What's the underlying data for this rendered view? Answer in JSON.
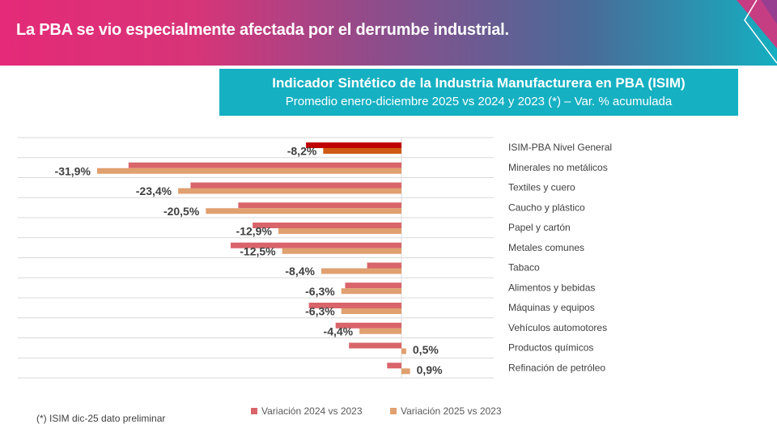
{
  "header": {
    "title": "La PBA se vio especialmente afectada por el derrumbe industrial."
  },
  "chart_title": {
    "main": "Indicador  Sintético de la Industria  Manufacturera  en PBA (ISIM)",
    "sub": "Promedio enero-diciembre 2025 vs 2024 y 2023 (*) – Var. % acumulada"
  },
  "footnote": "(*) ISIM dic-25 dato preliminar",
  "chart_data": {
    "type": "bar",
    "orientation": "horizontal",
    "categories": [
      "ISIM-PBA Nivel General",
      "Minerales no metálicos",
      "Textiles y cuero",
      "Caucho y plástico",
      "Papel y cartón",
      "Metales comunes",
      "Tabaco",
      "Alimentos y bebidas",
      "Máquinas y equipos",
      "Vehículos automotores",
      "Productos químicos",
      "Refinación de petróleo"
    ],
    "series": [
      {
        "name": "Variación 2024 vs 2023",
        "color": "#d9646a",
        "highlight_color": "#c00000",
        "values": [
          -10.0,
          -28.6,
          -22.1,
          -17.1,
          -15.6,
          -17.9,
          -3.6,
          -5.9,
          -9.7,
          -6.9,
          -5.5,
          -1.5
        ]
      },
      {
        "name": "Variación 2025 vs 2023",
        "color": "#e0a070",
        "highlight_color": "#d05a14",
        "values": [
          -8.2,
          -31.9,
          -23.4,
          -20.5,
          -12.9,
          -12.5,
          -8.4,
          -6.3,
          -6.3,
          -4.4,
          0.5,
          0.9
        ]
      }
    ],
    "data_labels": [
      "-8,2%",
      "-31,9%",
      "-23,4%",
      "-20,5%",
      "-12,9%",
      "-12,5%",
      "-8,4%",
      "-6,3%",
      "-6,3%",
      "-4,4%",
      "0,5%",
      "0,9%"
    ],
    "xlim": [
      -40,
      10
    ],
    "grid": true,
    "legend": "bottom"
  }
}
